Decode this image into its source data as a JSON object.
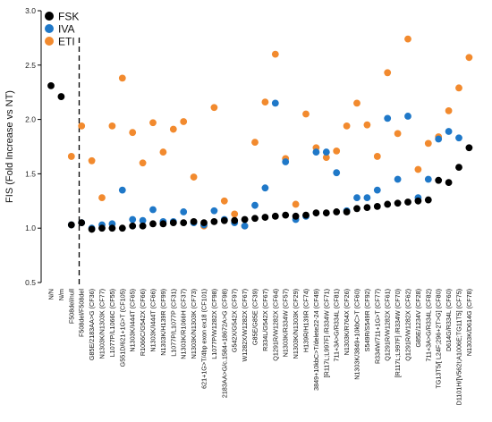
{
  "chart_data": {
    "type": "scatter",
    "ylabel": "FIS (Fold Increase vs NT)",
    "ylim": [
      0.5,
      3.0
    ],
    "yticks": [
      "0.5",
      "1.0",
      "1.5",
      "2.0",
      "2.5",
      "3.0"
    ],
    "legend_position": "top-left",
    "divider_after_category": 3,
    "categories": [
      "N/N",
      "N/m",
      "F508del/null",
      "F508del/F508del",
      "G85E/2183AA>G (CF36)",
      "N1303K/N1303K (CF77)",
      "L1077P/L1066C (CF55)",
      "G551D/621+1G>T (CF105)",
      "N1303K/I444T (CF65)",
      "R1066C/G542X (CF66)",
      "N1303K/I444T (CF66)",
      "N1303K/H139R (CF99)",
      "L1077P/L1077P (CF31)",
      "N1303K/R1066H (CF37)",
      "N1303K/N1303K (CF73)",
      "621+1G>T/4bp exon ex18 (CF101)",
      "L1077P/W1282X (CF98)",
      "2183AA>G/c.1584+18672A>G (CF98)",
      "G542X/G542X (CF97)",
      "W1282X/W1282X (CF67)",
      "G85E/G85E (CF39)",
      "R334L/G542X (CF67)",
      "Q1291R/W1282X (CF64)",
      "N1303K/R334W (CF57)",
      "N1303K/N1303K (CF29)",
      "H139R/H139R (CF74)",
      "3849+10kbC>T/delete22-24 (CF49)",
      "[R117L;L997F] /R334W (CF71)",
      "711+3A>G/R334L (CF81)",
      "N1303K/R764X (CF26)",
      "N1303K/3849+10kbC>T (CF60)",
      "S549R/S549R (CF92)",
      "R334W/711+1G>T (CF77)",
      "Q1291R/W1282X (CF61)",
      "[R117L;L997F] /R334W (CF70)",
      "Q1291R/W1282X (CF62)",
      "G85E/1234V (CF28)",
      "711+3A>G/R334L (CF82)",
      "TG13T5/[ L24F;296+2T>G] (CF80)",
      "D614G/R334L (CF60)",
      "D1101H/[V562I;A1006E;TG11T5] (CF75)",
      "N1303K/D614G (CF78)"
    ],
    "series": [
      {
        "name": "FSK",
        "color": "#000000",
        "values": [
          2.31,
          2.21,
          1.03,
          1.05,
          0.99,
          1.0,
          1.0,
          1.0,
          1.02,
          1.02,
          1.04,
          1.04,
          1.05,
          1.05,
          1.06,
          1.05,
          1.06,
          1.07,
          1.07,
          1.08,
          1.09,
          1.1,
          1.11,
          1.12,
          1.11,
          1.12,
          1.14,
          1.14,
          1.15,
          1.15,
          1.18,
          1.19,
          1.2,
          1.22,
          1.23,
          1.24,
          1.25,
          1.26,
          1.44,
          1.42,
          1.56,
          1.74
        ]
      },
      {
        "name": "IVA",
        "color": "#1f78c8",
        "values": [
          null,
          null,
          1.03,
          1.05,
          1.0,
          1.03,
          1.04,
          1.35,
          1.08,
          1.07,
          1.17,
          1.06,
          1.06,
          1.15,
          1.05,
          1.03,
          1.16,
          1.08,
          1.05,
          1.02,
          1.21,
          1.37,
          2.15,
          1.61,
          1.08,
          1.11,
          1.7,
          1.7,
          1.51,
          1.16,
          1.28,
          1.28,
          1.35,
          2.01,
          1.45,
          2.03,
          1.28,
          1.45,
          1.82,
          1.89,
          1.83,
          null
        ]
      },
      {
        "name": "ETI",
        "color": "#f28a2e",
        "values": [
          null,
          null,
          1.66,
          1.94,
          1.62,
          1.28,
          1.94,
          2.38,
          1.88,
          1.6,
          1.97,
          1.7,
          1.91,
          1.98,
          1.47,
          1.02,
          2.11,
          1.25,
          1.13,
          1.02,
          1.79,
          2.16,
          2.6,
          1.64,
          1.22,
          2.05,
          1.74,
          1.65,
          1.71,
          1.94,
          2.15,
          1.95,
          1.66,
          2.43,
          1.87,
          2.74,
          1.54,
          1.78,
          1.84,
          2.08,
          2.29,
          2.57
        ]
      }
    ]
  }
}
